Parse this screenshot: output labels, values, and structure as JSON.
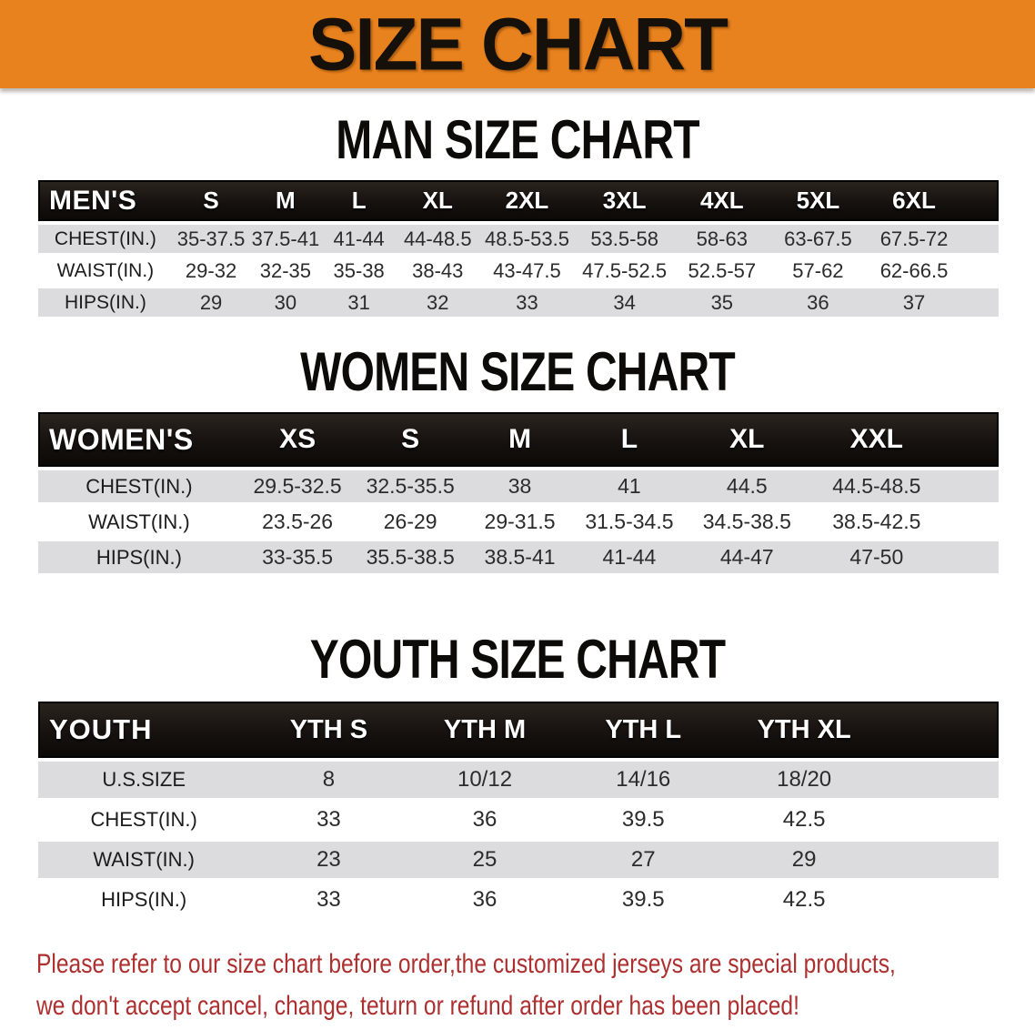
{
  "banner": {
    "title": "SIZE CHART"
  },
  "colors": {
    "banner_bg": "#e8821e",
    "header_bar": "#171210",
    "stripe_gray": "#dcdcde",
    "disclaimer_red": "#ad2f2f"
  },
  "sections": [
    {
      "heading": "MAN SIZE CHART",
      "label": "MEN'S",
      "columns": [
        "S",
        "M",
        "L",
        "XL",
        "2XL",
        "3XL",
        "4XL",
        "5XL",
        "6XL"
      ],
      "rows": [
        {
          "label": "CHEST(IN.)",
          "values": [
            "35-37.5",
            "37.5-41",
            "41-44",
            "44-48.5",
            "48.5-53.5",
            "53.5-58",
            "58-63",
            "63-67.5",
            "67.5-72"
          ]
        },
        {
          "label": "WAIST(IN.)",
          "values": [
            "29-32",
            "32-35",
            "35-38",
            "38-43",
            "43-47.5",
            "47.5-52.5",
            "52.5-57",
            "57-62",
            "62-66.5"
          ]
        },
        {
          "label": "HIPS(IN.)",
          "values": [
            "29",
            "30",
            "31",
            "32",
            "33",
            "34",
            "35",
            "36",
            "37"
          ]
        }
      ]
    },
    {
      "heading": "WOMEN SIZE CHART",
      "label": "WOMEN'S",
      "columns": [
        "XS",
        "S",
        "M",
        "L",
        "XL",
        "XXL"
      ],
      "rows": [
        {
          "label": "CHEST(IN.)",
          "values": [
            "29.5-32.5",
            "32.5-35.5",
            "38",
            "41",
            "44.5",
            "44.5-48.5"
          ]
        },
        {
          "label": "WAIST(IN.)",
          "values": [
            "23.5-26",
            "26-29",
            "29-31.5",
            "31.5-34.5",
            "34.5-38.5",
            "38.5-42.5"
          ]
        },
        {
          "label": "HIPS(IN.)",
          "values": [
            "33-35.5",
            "35.5-38.5",
            "38.5-41",
            "41-44",
            "44-47",
            "47-50"
          ]
        }
      ]
    },
    {
      "heading": "YOUTH SIZE CHART",
      "label": "YOUTH",
      "columns": [
        "YTH S",
        "YTH M",
        "YTH L",
        "YTH XL"
      ],
      "rows": [
        {
          "label": "U.S.SIZE",
          "values": [
            "8",
            "10/12",
            "14/16",
            "18/20"
          ]
        },
        {
          "label": "CHEST(IN.)",
          "values": [
            "33",
            "36",
            "39.5",
            "42.5"
          ]
        },
        {
          "label": "WAIST(IN.)",
          "values": [
            "23",
            "25",
            "27",
            "29"
          ]
        },
        {
          "label": "HIPS(IN.)",
          "values": [
            "33",
            "36",
            "39.5",
            "42.5"
          ]
        }
      ]
    }
  ],
  "disclaimer": {
    "line1": "Please refer to our size chart before order,the customized jerseys are special products,",
    "line2": "we don't accept cancel, change, teturn or refund after order has been placed!"
  }
}
